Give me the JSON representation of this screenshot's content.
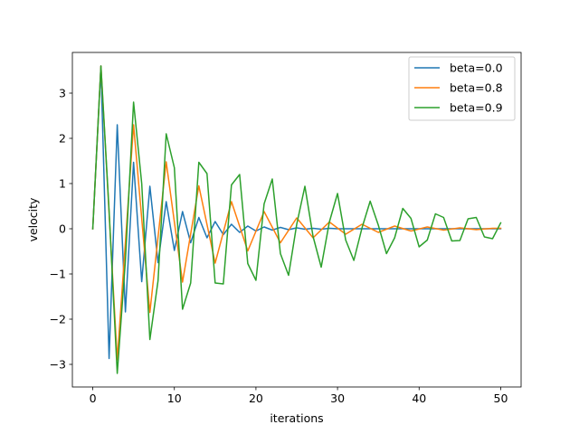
{
  "chart_data": {
    "type": "line",
    "title": "",
    "xlabel": "iterations",
    "ylabel": "velocity",
    "xlim": [
      -2.5,
      52.5
    ],
    "ylim": [
      -3.5,
      3.9
    ],
    "xticks": [
      0,
      10,
      20,
      30,
      40,
      50
    ],
    "yticks": [
      -3,
      -2,
      -1,
      0,
      1,
      2,
      3
    ],
    "grid": false,
    "legend_position": "top-right",
    "series": [
      {
        "name": "beta=0.0",
        "color": "#1f77b4",
        "x": [
          0,
          1,
          2,
          3,
          4,
          5,
          6,
          7,
          8,
          9,
          10,
          11,
          12,
          13,
          14,
          15,
          16,
          17,
          18,
          19,
          20,
          21,
          22,
          23,
          24,
          25,
          26,
          27,
          28,
          29,
          30,
          31,
          32,
          33,
          34,
          35,
          36,
          37,
          38,
          39,
          40,
          41,
          42,
          43,
          44,
          45,
          46,
          47,
          48,
          49,
          50
        ],
        "y": [
          0,
          3.6,
          -2.87,
          2.3,
          -1.84,
          1.47,
          -1.17,
          0.94,
          -0.75,
          0.6,
          -0.48,
          0.38,
          -0.31,
          0.25,
          -0.2,
          0.16,
          -0.13,
          0.1,
          -0.08,
          0.06,
          -0.05,
          0.04,
          -0.03,
          0.03,
          -0.02,
          0.02,
          -0.01,
          0.01,
          -0.01,
          0.01,
          0,
          0,
          0,
          0,
          0,
          0,
          0,
          0,
          0,
          0,
          0,
          0,
          0,
          0,
          0,
          0,
          0,
          0,
          0,
          0,
          0
        ]
      },
      {
        "name": "beta=0.8",
        "color": "#ff7f0e",
        "x": [
          0,
          1,
          3,
          5,
          7,
          9,
          11,
          13,
          15,
          17,
          19,
          21,
          23,
          25,
          27,
          29,
          31,
          33,
          35,
          37,
          39,
          41,
          43,
          45,
          47,
          49,
          50
        ],
        "y": [
          0,
          3.6,
          -2.9,
          2.3,
          -1.85,
          1.48,
          -1.18,
          0.95,
          -0.76,
          0.6,
          -0.49,
          0.38,
          -0.31,
          0.24,
          -0.2,
          0.15,
          -0.12,
          0.1,
          -0.08,
          0.06,
          -0.05,
          0.04,
          -0.03,
          0.02,
          -0.02,
          0.01,
          0.01
        ]
      },
      {
        "name": "beta=0.9",
        "color": "#2ca02c",
        "x": [
          0,
          1,
          2,
          3,
          4,
          5,
          6,
          7,
          8,
          9,
          10,
          11,
          12,
          13,
          14,
          15,
          16,
          17,
          18,
          19,
          20,
          21,
          22,
          23,
          24,
          25,
          26,
          27,
          28,
          29,
          30,
          31,
          32,
          33,
          34,
          35,
          36,
          37,
          38,
          39,
          40,
          41,
          42,
          43,
          44,
          45,
          46,
          47,
          48,
          49,
          50
        ],
        "y": [
          0,
          3.6,
          0.4,
          -3.2,
          -0.7,
          2.8,
          1.0,
          -2.45,
          -1.15,
          2.1,
          1.35,
          -1.78,
          -1.2,
          1.47,
          1.22,
          -1.2,
          -1.22,
          0.97,
          1.2,
          -0.77,
          -1.14,
          0.55,
          1.1,
          -0.55,
          -1.03,
          0.1,
          0.94,
          -0.17,
          -0.85,
          0.15,
          0.78,
          -0.25,
          -0.7,
          0.02,
          0.61,
          0.08,
          -0.55,
          -0.2,
          0.45,
          0.23,
          -0.4,
          -0.25,
          0.33,
          0.25,
          -0.27,
          -0.26,
          0.22,
          0.25,
          -0.18,
          -0.22,
          0.13
        ]
      }
    ]
  }
}
